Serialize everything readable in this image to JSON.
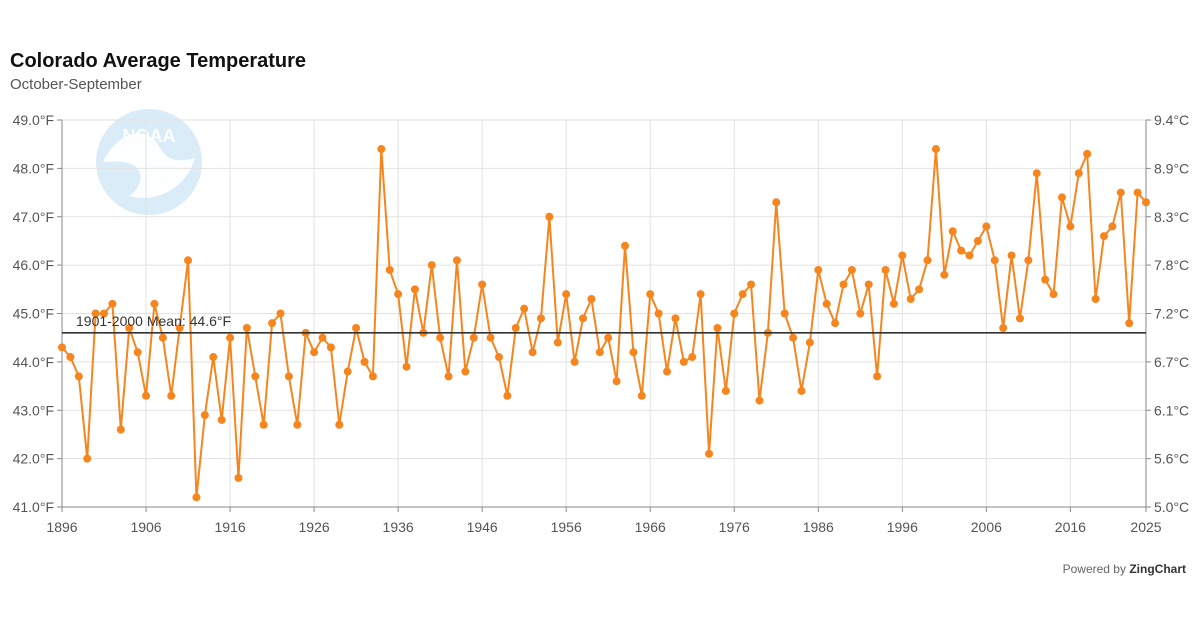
{
  "colors": {
    "series": "#f7851e",
    "mean_line": "#333333",
    "grid": "#e2e2e2",
    "axis": "#888888"
  },
  "footer": {
    "prefix": "Powered by",
    "brand": "ZingChart"
  },
  "logo": {
    "text": "NOAA",
    "icon": "noaa-logo-icon"
  },
  "chart_data": {
    "type": "line",
    "title": "Colorado Average Temperature",
    "subtitle": "October-September",
    "xlabel": "",
    "ylabel": "",
    "xlim": [
      1896,
      2025
    ],
    "ylim": [
      41.0,
      49.0
    ],
    "x_ticks": [
      "1896",
      "1906",
      "1916",
      "1926",
      "1936",
      "1946",
      "1956",
      "1966",
      "1976",
      "1986",
      "1996",
      "2006",
      "2016",
      "2025"
    ],
    "y_ticks_left": [
      "41.0°F",
      "42.0°F",
      "43.0°F",
      "44.0°F",
      "45.0°F",
      "46.0°F",
      "47.0°F",
      "48.0°F",
      "49.0°F"
    ],
    "y_ticks_right": [
      "5.0°C",
      "5.6°C",
      "6.1°C",
      "6.7°C",
      "7.2°C",
      "7.8°C",
      "8.3°C",
      "8.9°C",
      "9.4°C"
    ],
    "grid": true,
    "mean": {
      "label": "1901-2000 Mean: 44.6°F",
      "value": 44.6
    },
    "series": [
      {
        "x_start": 1896,
        "values": [
          44.3,
          44.1,
          43.7,
          42.0,
          45.0,
          45.0,
          45.2,
          42.6,
          44.7,
          44.2,
          43.3,
          45.2,
          44.5,
          43.3,
          44.7,
          46.1,
          41.2,
          42.9,
          44.1,
          42.8,
          44.5,
          41.6,
          44.7,
          43.7,
          42.7,
          44.8,
          45.0,
          43.7,
          42.7,
          44.6,
          44.2,
          44.5,
          44.3,
          42.7,
          43.8,
          44.7,
          44.0,
          43.7,
          48.4,
          45.9,
          45.4,
          43.9,
          45.5,
          44.6,
          46.0,
          44.5,
          43.7,
          46.1,
          43.8,
          44.5,
          45.6,
          44.5,
          44.1,
          43.3,
          44.7,
          45.1,
          44.2,
          44.9,
          47.0,
          44.4,
          45.4,
          44.0,
          44.9,
          45.3,
          44.2,
          44.5,
          43.6,
          46.4,
          44.2,
          43.3,
          45.4,
          45.0,
          43.8,
          44.9,
          44.0,
          44.1,
          45.4,
          42.1,
          44.7,
          43.4,
          45.0,
          45.4,
          45.6,
          43.2,
          44.6,
          47.3,
          45.0,
          44.5,
          43.4,
          44.4,
          45.9,
          45.2,
          44.8,
          45.6,
          45.9,
          45.0,
          45.6,
          43.7,
          45.9,
          45.2,
          46.2,
          45.3,
          45.5,
          46.1,
          48.4,
          45.8,
          46.7,
          46.3,
          46.2,
          46.5,
          46.8,
          46.1,
          44.7,
          46.2,
          44.9,
          46.1,
          47.9,
          45.7,
          45.4,
          47.4,
          46.8,
          47.9,
          48.3,
          45.3,
          46.6,
          46.8,
          47.5,
          44.8,
          47.5,
          47.3
        ]
      }
    ]
  }
}
